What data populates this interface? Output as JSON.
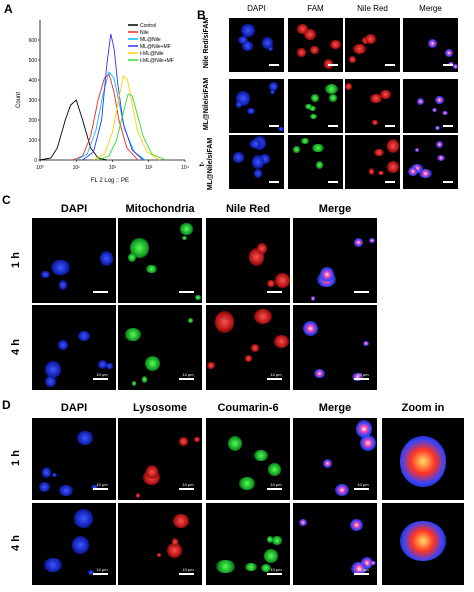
{
  "panels": {
    "A": "A",
    "B": "B",
    "C": "C",
    "D": "D"
  },
  "chart_data": {
    "type": "line",
    "xlabel": "FL 2 Log :: PE",
    "ylabel": "Count",
    "x_scale": "log",
    "xlim": [
      1,
      10000
    ],
    "ylim": [
      0,
      700
    ],
    "yticks": [
      "0",
      "100",
      "200",
      "300",
      "400",
      "500",
      "600"
    ],
    "xticks": [
      "10⁰",
      "10¹",
      "10²",
      "10³",
      "10⁴"
    ],
    "legend_position": "top-right",
    "series": [
      {
        "name": "Control",
        "color": "#000000",
        "x": [
          1,
          2,
          3,
          5,
          7,
          10,
          15,
          25,
          40,
          70
        ],
        "y": [
          0,
          10,
          60,
          200,
          275,
          300,
          200,
          60,
          10,
          0
        ]
      },
      {
        "name": "Nile",
        "color": "#ff2020",
        "x": [
          8,
          15,
          25,
          40,
          60,
          80,
          110,
          150,
          250,
          500
        ],
        "y": [
          0,
          20,
          120,
          300,
          410,
          430,
          340,
          200,
          60,
          0
        ]
      },
      {
        "name": "ML@Nile",
        "color": "#00bfff",
        "x": [
          10,
          20,
          35,
          55,
          80,
          110,
          150,
          220,
          400,
          800
        ],
        "y": [
          0,
          30,
          150,
          330,
          440,
          410,
          290,
          150,
          40,
          0
        ]
      },
      {
        "name": "ML@Nile+MF",
        "color": "#3030ff",
        "x": [
          15,
          30,
          50,
          70,
          90,
          110,
          140,
          200,
          350,
          700
        ],
        "y": [
          0,
          40,
          200,
          480,
          630,
          560,
          380,
          180,
          50,
          0
        ]
      },
      {
        "name": "t-ML@Nile",
        "color": "#ffd000",
        "x": [
          30,
          60,
          100,
          150,
          200,
          260,
          350,
          500,
          900,
          2000
        ],
        "y": [
          0,
          30,
          140,
          310,
          420,
          400,
          280,
          140,
          40,
          0
        ]
      },
      {
        "name": "t-ML@Nile+MF",
        "color": "#33dd33",
        "x": [
          40,
          80,
          130,
          200,
          270,
          350,
          480,
          700,
          1200,
          3000
        ],
        "y": [
          0,
          20,
          100,
          240,
          330,
          320,
          230,
          120,
          30,
          0
        ]
      }
    ]
  },
  "panelB": {
    "columns": [
      "DAPI",
      "FAM",
      "Nile Red",
      "Merge"
    ],
    "rows": [
      "Nile Red/siFAM",
      "ML@Nile/siFAM",
      "t-ML@Nile/siFAM"
    ]
  },
  "panelC": {
    "columns": [
      "DAPI",
      "Mitochondria",
      "Nile Red",
      "Merge"
    ],
    "rows": [
      "1 h",
      "4 h"
    ],
    "scale": "10 μm"
  },
  "panelD": {
    "columns": [
      "DAPI",
      "Lysosome",
      "Coumarin-6",
      "Merge",
      "Zoom in"
    ],
    "rows": [
      "1 h",
      "4 h"
    ],
    "scale": "10 μm"
  }
}
